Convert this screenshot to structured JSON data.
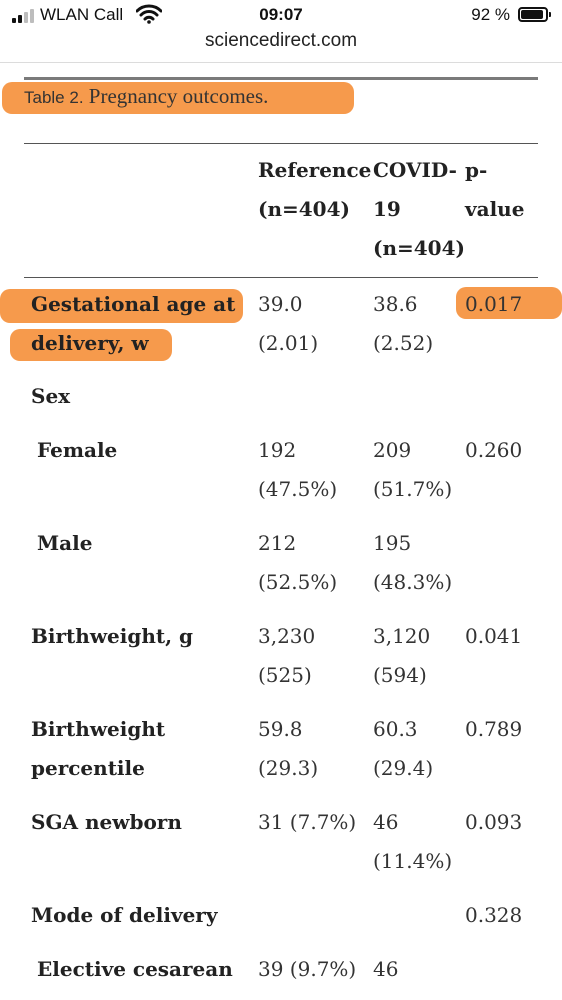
{
  "status_bar": {
    "carrier": "WLAN Call",
    "time": "09:07",
    "battery": "92 %"
  },
  "browser": {
    "url": "sciencedirect.com"
  },
  "table": {
    "caption_label": "Table 2.",
    "caption_title": "Pregnancy outcomes.",
    "headers": {
      "reference": [
        "Reference",
        "(n=404)"
      ],
      "covid": [
        "COVID-",
        "19",
        "(n=404)"
      ],
      "pvalue": [
        "p-",
        "value"
      ]
    },
    "rows": [
      {
        "label": [
          "Gestational age at",
          "delivery, w"
        ],
        "reference": [
          "39.0",
          "(2.01)"
        ],
        "covid": [
          "38.6",
          "(2.52)"
        ],
        "p": "0.017"
      },
      {
        "label": [
          "Sex"
        ]
      },
      {
        "label": [
          "Female"
        ],
        "reference": [
          "192",
          "(47.5%)"
        ],
        "covid": [
          "209",
          "(51.7%)"
        ],
        "p": "0.260"
      },
      {
        "label": [
          "Male"
        ],
        "reference": [
          "212",
          "(52.5%)"
        ],
        "covid": [
          "195",
          "(48.3%)"
        ]
      },
      {
        "label": [
          "Birthweight, g"
        ],
        "reference": [
          "3,230",
          "(525)"
        ],
        "covid": [
          "3,120",
          "(594)"
        ],
        "p": "0.041"
      },
      {
        "label": [
          "Birthweight",
          "percentile"
        ],
        "reference": [
          "59.8",
          "(29.3)"
        ],
        "covid": [
          "60.3",
          "(29.4)"
        ],
        "p": "0.789"
      },
      {
        "label": [
          "SGA newborn"
        ],
        "reference": [
          "31 (7.7%)"
        ],
        "covid": [
          "46",
          "(11.4%)"
        ],
        "p": "0.093"
      },
      {
        "label": [
          "Mode of delivery"
        ],
        "p": "0.328"
      },
      {
        "label": [
          "Elective cesarean"
        ],
        "reference": [
          "39 (9.7%)"
        ],
        "covid": [
          "46"
        ]
      }
    ]
  },
  "colors": {
    "highlight": "#f5913d"
  }
}
